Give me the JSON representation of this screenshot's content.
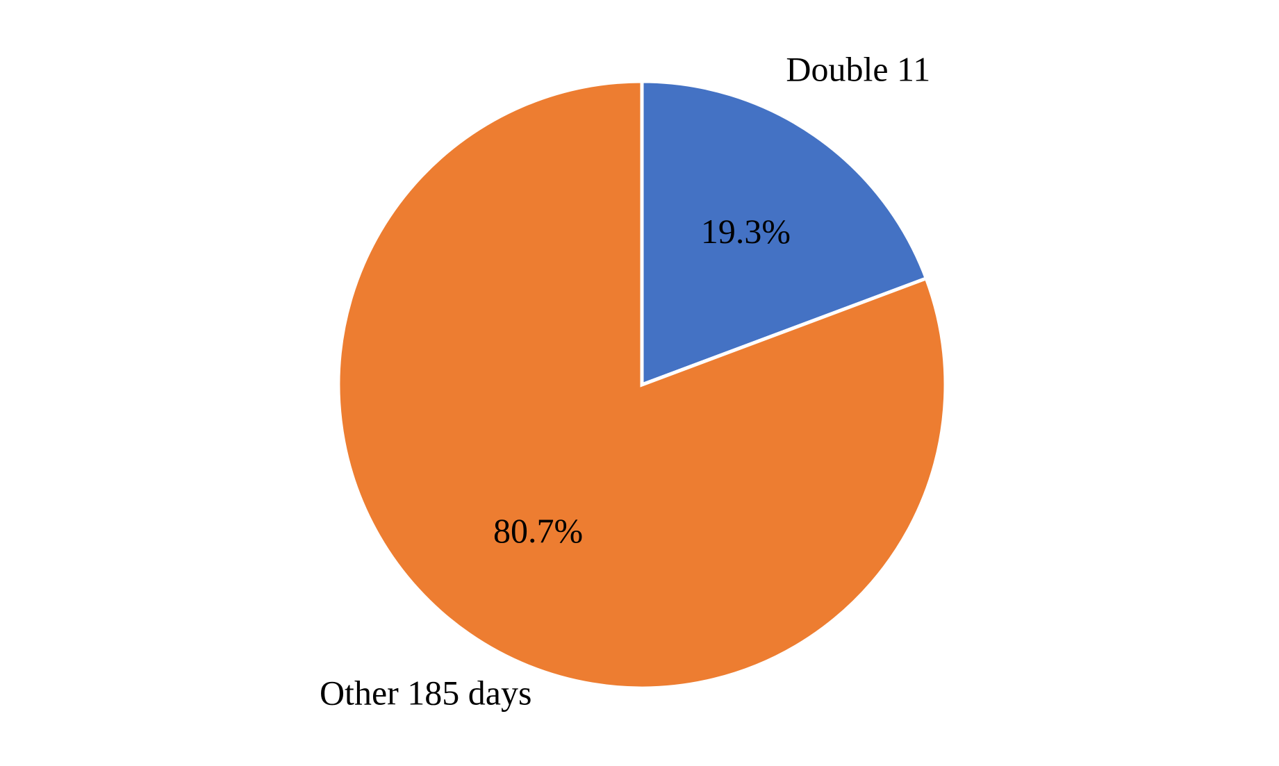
{
  "chart_data": {
    "type": "pie",
    "categories": [
      "Double 11",
      "Other 185 days"
    ],
    "values": [
      19.3,
      80.7
    ],
    "percent_labels": [
      "19.3%",
      "80.7%"
    ],
    "colors": [
      "#4472C4",
      "#ED7D31"
    ],
    "start_angle_deg": 0,
    "direction": "clockwise",
    "legend": "none"
  }
}
